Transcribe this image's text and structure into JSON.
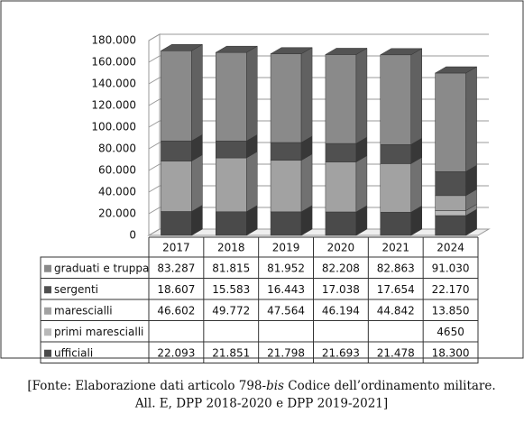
{
  "chart_data": {
    "type": "bar",
    "stacked": true,
    "grid": true,
    "categories": [
      "2017",
      "2018",
      "2019",
      "2020",
      "2021",
      "2024"
    ],
    "series": [
      {
        "name": "ufficiali",
        "color": "#4a4a4a",
        "values": [
          22093,
          21851,
          21798,
          21693,
          21478,
          18300
        ],
        "value_labels": [
          "22.093",
          "21.851",
          "21.798",
          "21.693",
          "21.478",
          "18.300"
        ]
      },
      {
        "name": "primi marescialli",
        "color": "#b8b8b8",
        "values": [
          null,
          null,
          null,
          null,
          null,
          4650
        ]
      },
      {
        "name": "marescialli",
        "color": "#a2a2a2",
        "values": [
          46602,
          49772,
          47564,
          46194,
          44842,
          13850
        ],
        "value_labels": [
          "46.602",
          "49.772",
          "47.564",
          "46.194",
          "44.842",
          "13.850"
        ]
      },
      {
        "name": "sergenti",
        "color": "#505050",
        "values": [
          18607,
          15583,
          16443,
          17038,
          17654,
          22170
        ],
        "value_labels": [
          "18.607",
          "15.583",
          "16.443",
          "17.038",
          "17.654",
          "22.170"
        ]
      },
      {
        "name": "graduati e truppa",
        "color": "#8a8a8a",
        "values": [
          83287,
          81815,
          81952,
          82208,
          82863,
          91030
        ],
        "value_labels": [
          "83.287",
          "81.815",
          "81.952",
          "82.208",
          "82.863",
          "91.030"
        ]
      }
    ],
    "ylim": [
      0,
      180000
    ],
    "yticks": [
      0,
      {
        "value": 20000,
        "label": "20.000"
      },
      {
        "value": 40000,
        "label": "40.000"
      },
      {
        "value": 60000,
        "label": "60.000"
      },
      {
        "value": 80000,
        "label": "80.000"
      },
      {
        "value": 100000,
        "label": "100.000"
      },
      {
        "value": 120000,
        "label": "120.000"
      },
      {
        "value": 140000,
        "label": "140.000"
      },
      {
        "value": 160000,
        "label": "160.000"
      },
      {
        "value": 180000,
        "label": "180.000"
      }
    ]
  },
  "caption": {
    "before": "[Fonte: Elaborazione dati articolo 798-",
    "italic": "bis",
    "after": " Codice dell’ordinamento militare.",
    "line2": "All. E, DPP 2018-2020 e DPP 2019-2021]"
  }
}
